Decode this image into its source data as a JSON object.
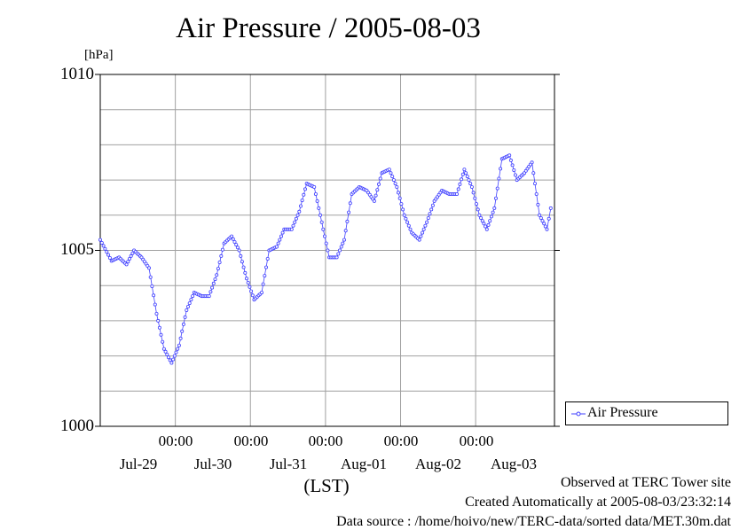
{
  "chart_data": {
    "type": "line",
    "title": "Air Pressure / 2005-08-03",
    "ylabel": "[hPa]",
    "xlabel": "(LST)",
    "ylim": [
      1000,
      1010
    ],
    "yticks": [
      "1010",
      "1005",
      "1000"
    ],
    "x_time_labels": [
      "00:00",
      "00:00",
      "00:00",
      "00:00",
      "00:00"
    ],
    "x_date_labels": [
      "Jul-29",
      "Jul-30",
      "Jul-31",
      "Aug-01",
      "Aug-02",
      "Aug-03"
    ],
    "grid": true,
    "legend_position": "right",
    "series": [
      {
        "name": "Air Pressure",
        "color": "#4040ff",
        "x": [
          0.0,
          0.15,
          0.25,
          0.35,
          0.45,
          0.55,
          0.65,
          0.75,
          0.85,
          0.95,
          1.05,
          1.15,
          1.25,
          1.35,
          1.45,
          1.55,
          1.65,
          1.75,
          1.85,
          1.95,
          2.05,
          2.15,
          2.25,
          2.35,
          2.45,
          2.55,
          2.65,
          2.75,
          2.85,
          2.95,
          3.05,
          3.15,
          3.25,
          3.35,
          3.45,
          3.55,
          3.65,
          3.75,
          3.85,
          3.95,
          4.05,
          4.15,
          4.25,
          4.35,
          4.45,
          4.55,
          4.65,
          4.75,
          4.85,
          4.95,
          5.05,
          5.15,
          5.25,
          5.35,
          5.45,
          5.55,
          5.65,
          5.75,
          5.85,
          5.95,
          6.0
        ],
        "values": [
          1005.3,
          1004.7,
          1004.8,
          1004.6,
          1005.0,
          1004.8,
          1004.5,
          1003.2,
          1002.2,
          1001.8,
          1002.3,
          1003.3,
          1003.8,
          1003.7,
          1003.7,
          1004.3,
          1005.2,
          1005.4,
          1005.0,
          1004.2,
          1003.6,
          1003.8,
          1005.0,
          1005.1,
          1005.6,
          1005.6,
          1006.1,
          1006.9,
          1006.8,
          1005.8,
          1004.8,
          1004.8,
          1005.3,
          1006.6,
          1006.8,
          1006.7,
          1006.4,
          1007.2,
          1007.3,
          1006.8,
          1006.0,
          1005.5,
          1005.3,
          1005.8,
          1006.4,
          1006.7,
          1006.6,
          1006.6,
          1007.3,
          1006.8,
          1006.0,
          1005.6,
          1006.2,
          1007.6,
          1007.7,
          1007.0,
          1007.2,
          1007.5,
          1006.0,
          1005.6,
          1006.2
        ]
      }
    ]
  },
  "legend": {
    "label": "Air Pressure"
  },
  "footer": {
    "line1": "Observed at TERC Tower site",
    "line2": "Created Automatically at 2005-08-03/23:32:14",
    "line3": "Data source : /home/hoivo/new/TERC-data/sorted  data/MET.30m.dat"
  }
}
